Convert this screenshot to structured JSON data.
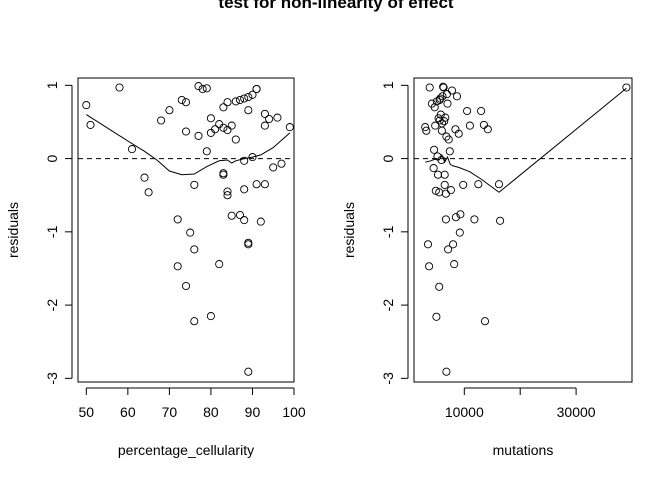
{
  "title": "test for non-linearity of effect",
  "chart_data": [
    {
      "type": "scatter",
      "xlabel": "percentage_cellularity",
      "ylabel": "residuals",
      "xlim": [
        48,
        100
      ],
      "ylim": [
        -3.05,
        1.1
      ],
      "x_ticks": [
        50,
        60,
        70,
        80,
        90,
        100
      ],
      "y_ticks": [
        -3,
        -2,
        -1,
        0,
        1
      ],
      "x_tick_labels": [
        "50",
        "60",
        "70",
        "80",
        "90",
        "100"
      ],
      "y_tick_labels": [
        "-3",
        "-2",
        "-1",
        "0",
        "1"
      ],
      "reference_line_y": 0,
      "points": [
        [
          50,
          0.73
        ],
        [
          51,
          0.46
        ],
        [
          58,
          0.97
        ],
        [
          61,
          0.13
        ],
        [
          64,
          -0.26
        ],
        [
          65,
          -0.46
        ],
        [
          68,
          0.52
        ],
        [
          70,
          0.66
        ],
        [
          72,
          -0.83
        ],
        [
          72,
          -1.47
        ],
        [
          73,
          0.8
        ],
        [
          74,
          0.77
        ],
        [
          74,
          0.37
        ],
        [
          74,
          -1.74
        ],
        [
          75,
          -1.01
        ],
        [
          76,
          -1.24
        ],
        [
          76,
          -2.22
        ],
        [
          76,
          -0.36
        ],
        [
          77,
          0.99
        ],
        [
          77,
          0.31
        ],
        [
          78,
          0.95
        ],
        [
          79,
          0.96
        ],
        [
          79,
          0.1
        ],
        [
          80,
          -2.15
        ],
        [
          80,
          0.55
        ],
        [
          80,
          0.35
        ],
        [
          81,
          0.4
        ],
        [
          82,
          0.47
        ],
        [
          82,
          -1.44
        ],
        [
          83,
          0.7
        ],
        [
          83,
          0.42
        ],
        [
          83,
          -0.2
        ],
        [
          83,
          -0.22
        ],
        [
          84,
          0.77
        ],
        [
          84,
          0.39
        ],
        [
          84,
          -0.45
        ],
        [
          84,
          -0.5
        ],
        [
          85,
          0.45
        ],
        [
          85,
          -0.78
        ],
        [
          86,
          0.78
        ],
        [
          86,
          0.26
        ],
        [
          87,
          0.8
        ],
        [
          87,
          -0.77
        ],
        [
          88,
          0.82
        ],
        [
          88,
          -0.42
        ],
        [
          88,
          -0.84
        ],
        [
          88,
          -0.03
        ],
        [
          89,
          0.84
        ],
        [
          89,
          0.66
        ],
        [
          89,
          -1.15
        ],
        [
          89,
          -1.17
        ],
        [
          89,
          -2.91
        ],
        [
          90,
          0.87
        ],
        [
          90,
          0.02
        ],
        [
          91,
          0.95
        ],
        [
          91,
          0.95
        ],
        [
          91,
          -0.35
        ],
        [
          92,
          -0.86
        ],
        [
          93,
          0.45
        ],
        [
          93,
          0.61
        ],
        [
          93,
          -0.35
        ],
        [
          94,
          0.54
        ],
        [
          95,
          -0.12
        ],
        [
          96,
          0.56
        ],
        [
          97,
          -0.07
        ],
        [
          99,
          0.43
        ]
      ],
      "smooth_line": [
        [
          50,
          0.6
        ],
        [
          55,
          0.42
        ],
        [
          60,
          0.24
        ],
        [
          64,
          0.1
        ],
        [
          67,
          -0.02
        ],
        [
          70,
          -0.17
        ],
        [
          73,
          -0.22
        ],
        [
          76,
          -0.21
        ],
        [
          79,
          -0.11
        ],
        [
          82,
          -0.03
        ],
        [
          84,
          -0.02
        ],
        [
          85,
          -0.06
        ],
        [
          86,
          -0.03
        ],
        [
          88,
          0.0
        ],
        [
          90,
          0.02
        ],
        [
          92,
          0.05
        ],
        [
          95,
          0.15
        ],
        [
          99,
          0.35
        ]
      ]
    },
    {
      "type": "scatter",
      "xlabel": "mutations",
      "ylabel": "residuals",
      "xlim": [
        1000,
        40000
      ],
      "ylim": [
        -3.05,
        1.1
      ],
      "x_ticks": [
        10000,
        20000,
        30000
      ],
      "y_ticks": [
        -3,
        -2,
        -1,
        0,
        1
      ],
      "x_tick_labels": [
        "10000",
        "",
        "30000"
      ],
      "y_tick_labels": [
        "-3",
        "-2",
        "-1",
        "0",
        "1"
      ],
      "reference_line_y": 0,
      "points": [
        [
          3000,
          0.43
        ],
        [
          3200,
          0.38
        ],
        [
          3500,
          -1.17
        ],
        [
          3700,
          -1.47
        ],
        [
          3800,
          0.97
        ],
        [
          4200,
          0.75
        ],
        [
          4500,
          -0.13
        ],
        [
          4600,
          0.12
        ],
        [
          4700,
          0.7
        ],
        [
          4800,
          0.45
        ],
        [
          4900,
          -0.44
        ],
        [
          5000,
          -2.16
        ],
        [
          5100,
          0.78
        ],
        [
          5200,
          0.03
        ],
        [
          5300,
          -0.22
        ],
        [
          5400,
          0.55
        ],
        [
          5500,
          -1.75
        ],
        [
          5500,
          -0.46
        ],
        [
          5600,
          0.52
        ],
        [
          5600,
          0.8
        ],
        [
          5700,
          0.82
        ],
        [
          5800,
          0.6
        ],
        [
          5900,
          -0.02
        ],
        [
          6000,
          0.38
        ],
        [
          6000,
          0.48
        ],
        [
          6100,
          0.85
        ],
        [
          6200,
          0.98
        ],
        [
          6300,
          0.97
        ],
        [
          6400,
          0.51
        ],
        [
          6500,
          -0.22
        ],
        [
          6500,
          -0.36
        ],
        [
          6600,
          0.56
        ],
        [
          6700,
          -0.48
        ],
        [
          6700,
          -0.83
        ],
        [
          6800,
          -2.91
        ],
        [
          6800,
          0.3
        ],
        [
          6900,
          0.88
        ],
        [
          7000,
          0.75
        ],
        [
          7100,
          -1.24
        ],
        [
          7200,
          0.26
        ],
        [
          7400,
          0.1
        ],
        [
          7600,
          -0.43
        ],
        [
          7800,
          0.93
        ],
        [
          8000,
          -1.17
        ],
        [
          8200,
          -1.44
        ],
        [
          8400,
          0.4
        ],
        [
          8500,
          -0.8
        ],
        [
          8700,
          0.85
        ],
        [
          9000,
          0.34
        ],
        [
          9200,
          -1.01
        ],
        [
          9300,
          -0.76
        ],
        [
          9800,
          -0.36
        ],
        [
          10500,
          0.65
        ],
        [
          11000,
          0.45
        ],
        [
          11800,
          -0.83
        ],
        [
          12500,
          -0.35
        ],
        [
          13000,
          0.65
        ],
        [
          13500,
          0.46
        ],
        [
          13700,
          -2.22
        ],
        [
          14200,
          0.4
        ],
        [
          16200,
          -0.35
        ],
        [
          16400,
          -0.85
        ],
        [
          39000,
          0.97
        ]
      ],
      "smooth_line": [
        [
          3000,
          -0.05
        ],
        [
          4000,
          -0.03
        ],
        [
          5000,
          0.0
        ],
        [
          5500,
          -0.02
        ],
        [
          6000,
          0.05
        ],
        [
          6500,
          -0.05
        ],
        [
          7000,
          0.02
        ],
        [
          7500,
          -0.08
        ],
        [
          8000,
          -0.1
        ],
        [
          9000,
          -0.12
        ],
        [
          11000,
          -0.18
        ],
        [
          13000,
          -0.28
        ],
        [
          16200,
          -0.46
        ],
        [
          39000,
          0.96
        ]
      ]
    }
  ]
}
